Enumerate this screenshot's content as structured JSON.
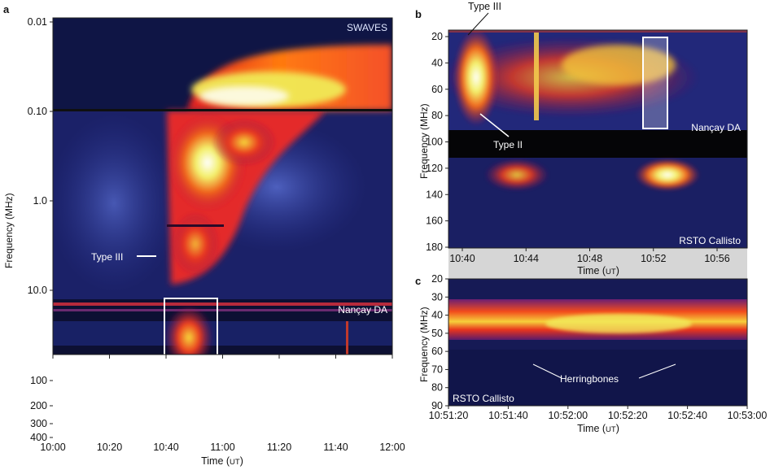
{
  "colors": {
    "background": "#10143f",
    "dark_band": "#050507",
    "hot": "#fff6b0",
    "connector": "#c8c8c8"
  },
  "chart_data": [
    {
      "panel": "a",
      "type": "heatmap",
      "title": "",
      "xlabel": "Time (UT)",
      "ylabel": "Frequency (MHz)",
      "xlim": [
        "10:00",
        "12:00"
      ],
      "ylim": [
        0.01,
        400
      ],
      "y_scale": "log",
      "x_ticks": [
        "10:00",
        "10:20",
        "10:40",
        "11:00",
        "11:20",
        "11:40",
        "12:00"
      ],
      "y_ticks": [
        "0.01",
        "0.10",
        "1.0",
        "10.0",
        "100",
        "200",
        "300",
        "400"
      ],
      "annotations": [
        "SWAVES",
        "Nançay DA",
        "RSTO Callisto",
        "Type III"
      ]
    },
    {
      "panel": "b",
      "type": "heatmap",
      "title": "",
      "xlabel": "Time (UT)",
      "ylabel": "Frequency (MHz)",
      "x_ticks": [
        "10:40",
        "10:44",
        "10:48",
        "10:52",
        "10:56"
      ],
      "y_ticks": [
        "20",
        "40",
        "60",
        "80",
        "100",
        "120",
        "140",
        "160",
        "180"
      ],
      "ylim": [
        180,
        20
      ],
      "annotations": [
        "Type III",
        "Type II",
        "Nançay DA",
        "RSTO Callisto"
      ]
    },
    {
      "panel": "c",
      "type": "heatmap",
      "title": "",
      "xlabel": "Time (UT)",
      "ylabel": "Frequency (MHz)",
      "x_ticks": [
        "10:51:20",
        "10:51:40",
        "10:52:00",
        "10:52:20",
        "10:52:40",
        "10:53:00"
      ],
      "y_ticks": [
        "20",
        "30",
        "40",
        "50",
        "60",
        "70",
        "80",
        "90"
      ],
      "ylim": [
        90,
        20
      ],
      "annotations": [
        "Herringbones",
        "RSTO Callisto"
      ]
    }
  ],
  "ui": {
    "time_word": "Time (",
    "time_unit": "UT",
    "time_close": ")"
  }
}
